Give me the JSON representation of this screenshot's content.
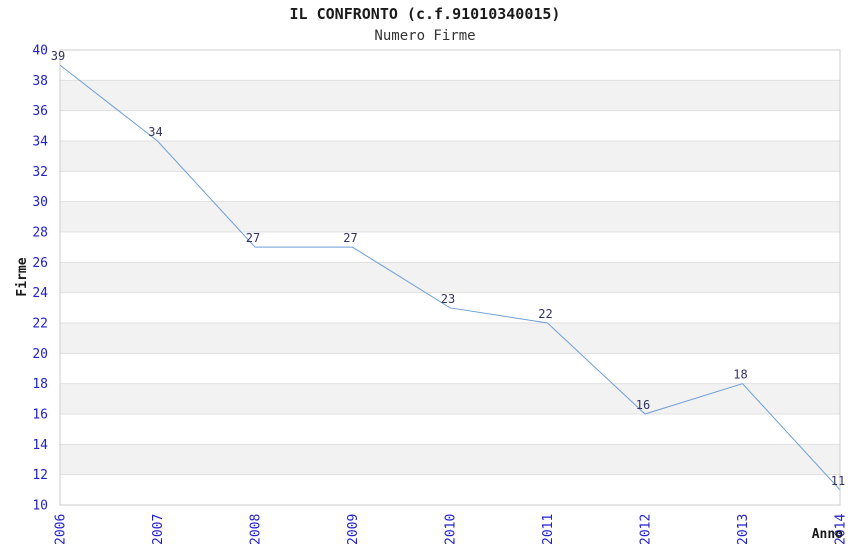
{
  "chart_data": {
    "type": "line",
    "title": "IL CONFRONTO (c.f.91010340015)",
    "subtitle": "Numero Firme",
    "xlabel": "Anno",
    "ylabel": "Firme",
    "x": [
      2006,
      2007,
      2008,
      2009,
      2010,
      2011,
      2012,
      2013,
      2014
    ],
    "values": [
      39,
      34,
      27,
      27,
      23,
      22,
      16,
      18,
      11
    ],
    "data_labels": [
      "39",
      "34",
      "27",
      "27",
      "23",
      "22",
      "16",
      "18",
      "11"
    ],
    "ylim": [
      10,
      40
    ],
    "ytick_step": 2,
    "grid": "alternating horizontal bands with light gridlines at even values",
    "legend": "none",
    "colors": {
      "line": "#6f9fd8",
      "axis_tick_labels": "#2222cc",
      "data_labels": "#333366",
      "band_fill": "#f2f2f2",
      "grid_line": "#e0e0e0",
      "plot_border": "#cccccc",
      "title": "#1a1a1a",
      "subtitle": "#333333"
    }
  }
}
